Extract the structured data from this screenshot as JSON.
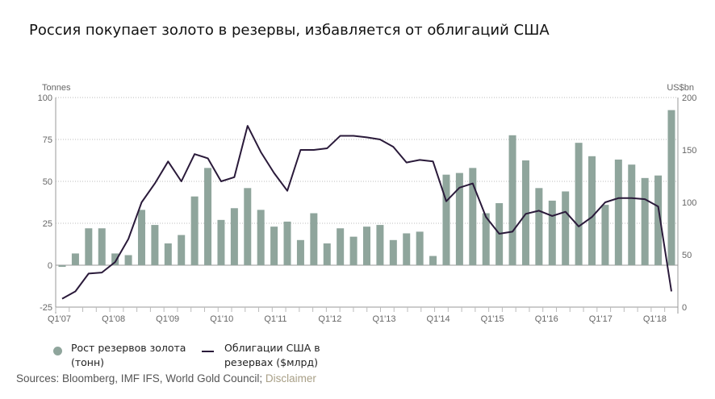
{
  "title": "Россия покупает золото в резервы, избавляется от облигаций США",
  "chart_data": {
    "type": "bar+line",
    "title": "Россия покупает золото в резервы, избавляется от облигаций США",
    "left_axis": {
      "label": "Tonnes",
      "range": [
        -25,
        100
      ],
      "ticks": [
        -25,
        0,
        25,
        50,
        75,
        100
      ]
    },
    "right_axis": {
      "label": "US$bn",
      "range": [
        0,
        200
      ],
      "ticks": [
        0,
        50,
        100,
        150,
        200
      ]
    },
    "x_tick_labels": [
      "Q1'07",
      "Q1'08",
      "Q1'09",
      "Q1'10",
      "Q1'11",
      "Q1'12",
      "Q1'13",
      "Q1'14",
      "Q1'15",
      "Q1'16",
      "Q1'17",
      "Q1'18"
    ],
    "grid": true,
    "series": [
      {
        "name": "Рост резервов золота (тонн)",
        "type": "bar",
        "axis": "left",
        "color": "#8fa59c",
        "values": [
          -1,
          7,
          22,
          22,
          7,
          6,
          33,
          24,
          13,
          18,
          41,
          58,
          27,
          34,
          46,
          33,
          23,
          26,
          15,
          31,
          13,
          22,
          17,
          23,
          24,
          15,
          19,
          20,
          5.5,
          54,
          55,
          58,
          31,
          37,
          77.5,
          62.5,
          46,
          38.5,
          44,
          73,
          65,
          36,
          63,
          60,
          52,
          53.5,
          92.5
        ]
      },
      {
        "name": "Облигации США в резервах ($млрд)",
        "type": "line",
        "axis": "right",
        "color": "#2a1a3a",
        "values": [
          8,
          15,
          32,
          33,
          43,
          65,
          100,
          118,
          139,
          120,
          146,
          142,
          120,
          124,
          173,
          148,
          128,
          111,
          150,
          150,
          151.5,
          163.5,
          163.5,
          162,
          160,
          153,
          138,
          140.5,
          139,
          101,
          114,
          118,
          86,
          70,
          72,
          89,
          92,
          87,
          91,
          77,
          86,
          100,
          104,
          104,
          103,
          96,
          15
        ]
      }
    ],
    "legend_position": "bottom-left"
  },
  "legend": {
    "bars_label": "Рост резервов золота (тонн)",
    "line_label": "Облигации США в резервах ($млрд)"
  },
  "sources": {
    "text": "Sources: Bloomberg, IMF IFS, World Gold Council; ",
    "disclaimer": "Disclaimer"
  }
}
